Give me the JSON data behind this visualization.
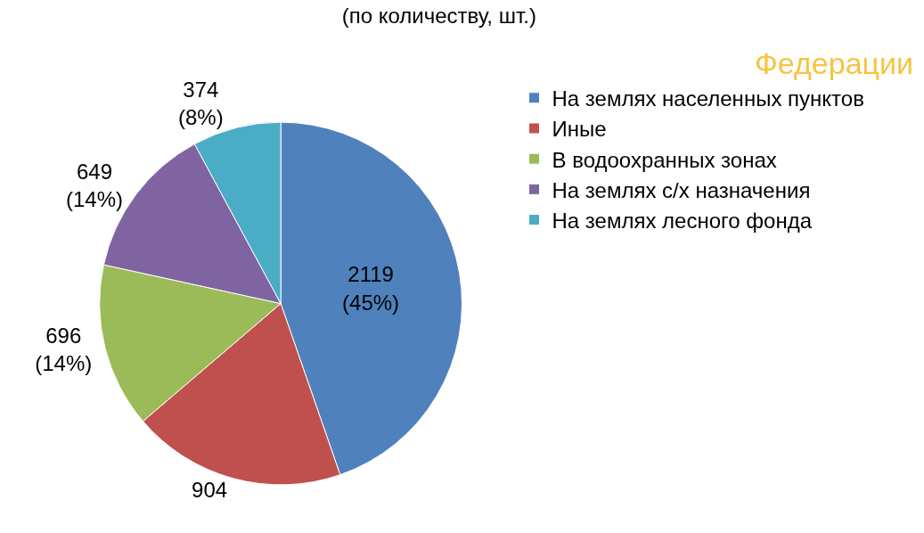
{
  "chart_data": {
    "type": "pie",
    "title": "(по количеству, шт.)",
    "annotations": [
      "Федерации"
    ],
    "categories": [
      "На землях населенных пунктов",
      "Иные",
      "В водоохранных зонах",
      "На землях с/х назначения",
      "На землях лесного фонда"
    ],
    "values": [
      2119,
      904,
      696,
      649,
      374
    ],
    "colors": [
      "#4f81bd",
      "#c0504d",
      "#9bbb59",
      "#8064a2",
      "#4bacc6"
    ],
    "value_labels": [
      "2119\n(45%)",
      "904",
      "696\n(14%)",
      "649\n(14%)",
      "374\n(8%)"
    ],
    "legend": "top right"
  }
}
